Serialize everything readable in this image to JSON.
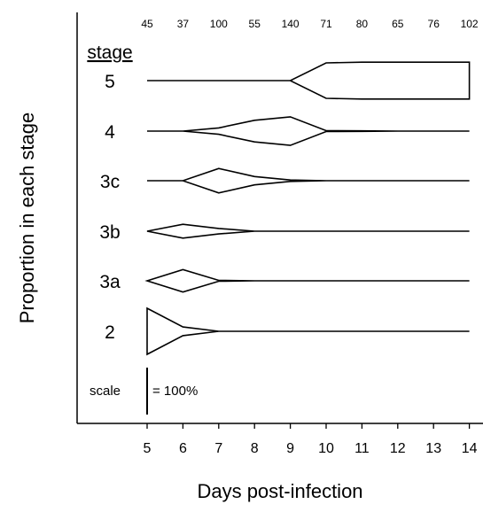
{
  "chart_data": {
    "type": "area",
    "subtype": "kite-diagram",
    "xlabel": "Days post-infection",
    "ylabel": "Proportion in each stage",
    "x": [
      5,
      6,
      7,
      8,
      9,
      10,
      11,
      12,
      13,
      14
    ],
    "sample_sizes": [
      "45",
      "37",
      "100",
      "55",
      "140",
      "71",
      "80",
      "65",
      "76",
      "102"
    ],
    "legend_title": "stage",
    "series": [
      {
        "name": "5",
        "values": [
          0,
          0,
          0,
          0,
          0,
          0.77,
          0.8,
          0.8,
          0.8,
          0.8
        ]
      },
      {
        "name": "4",
        "values": [
          0,
          0,
          0.14,
          0.47,
          0.62,
          0.02,
          0.01,
          0,
          0,
          0
        ]
      },
      {
        "name": "3c",
        "values": [
          0,
          0,
          0.53,
          0.18,
          0.03,
          0,
          0,
          0,
          0,
          0
        ]
      },
      {
        "name": "3b",
        "values": [
          0,
          0.3,
          0.12,
          0,
          0,
          0,
          0,
          0,
          0,
          0
        ]
      },
      {
        "name": "3a",
        "values": [
          0,
          0.49,
          0.02,
          0,
          0,
          0,
          0,
          0,
          0,
          0
        ]
      },
      {
        "name": "2",
        "values": [
          1.0,
          0.19,
          0,
          0,
          0,
          0,
          0,
          0,
          0,
          0
        ]
      }
    ],
    "scale_label": "scale",
    "scale_value_label": "= 100%",
    "grid": false
  }
}
